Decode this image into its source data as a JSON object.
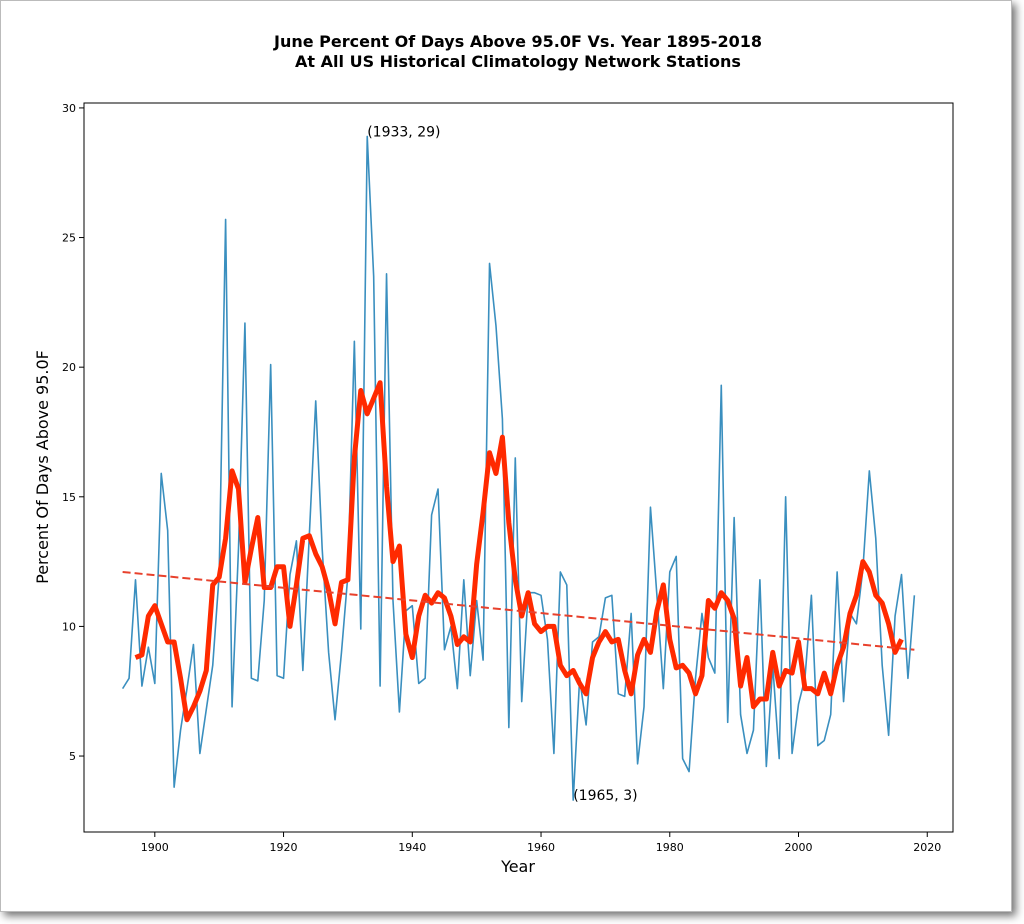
{
  "chart_data": {
    "type": "line",
    "title": [
      "June Percent Of Days Above 95.0F Vs. Year 1895-2018",
      "At All US Historical Climatology Network Stations"
    ],
    "xlabel": "Year",
    "ylabel": "Percent Of Days Above 95.0F",
    "x": [
      1895,
      1896,
      1897,
      1898,
      1899,
      1900,
      1901,
      1902,
      1903,
      1904,
      1905,
      1906,
      1907,
      1908,
      1909,
      1910,
      1911,
      1912,
      1913,
      1914,
      1915,
      1916,
      1917,
      1918,
      1919,
      1920,
      1921,
      1922,
      1923,
      1924,
      1925,
      1926,
      1927,
      1928,
      1929,
      1930,
      1931,
      1932,
      1933,
      1934,
      1935,
      1936,
      1937,
      1938,
      1939,
      1940,
      1941,
      1942,
      1943,
      1944,
      1945,
      1946,
      1947,
      1948,
      1949,
      1950,
      1951,
      1952,
      1953,
      1954,
      1955,
      1956,
      1957,
      1958,
      1959,
      1960,
      1961,
      1962,
      1963,
      1964,
      1965,
      1966,
      1967,
      1968,
      1969,
      1970,
      1971,
      1972,
      1973,
      1974,
      1975,
      1976,
      1977,
      1978,
      1979,
      1980,
      1981,
      1982,
      1983,
      1984,
      1985,
      1986,
      1987,
      1988,
      1989,
      1990,
      1991,
      1992,
      1993,
      1994,
      1995,
      1996,
      1997,
      1998,
      1999,
      2000,
      2001,
      2002,
      2003,
      2004,
      2005,
      2006,
      2007,
      2008,
      2009,
      2010,
      2011,
      2012,
      2013,
      2014,
      2015,
      2016,
      2017,
      2018
    ],
    "series": [
      {
        "color": "#3a8fbf",
        "width": 1.6,
        "values": [
          7.6,
          8.0,
          11.8,
          7.7,
          9.2,
          7.8,
          15.9,
          13.7,
          3.8,
          6.0,
          7.6,
          9.3,
          5.1,
          6.8,
          8.5,
          12.0,
          25.7,
          6.9,
          13.0,
          21.7,
          8.0,
          7.9,
          11.0,
          20.1,
          8.1,
          8.0,
          12.0,
          13.3,
          8.3,
          13.5,
          18.7,
          13.0,
          9.0,
          6.4,
          9.0,
          12.0,
          21.0,
          9.9,
          28.9,
          23.5,
          7.7,
          23.6,
          11.0,
          6.7,
          10.6,
          10.8,
          7.8,
          8.0,
          14.3,
          15.3,
          9.1,
          10.0,
          7.6,
          11.8,
          8.1,
          11.0,
          8.7,
          24.0,
          21.6,
          18.0,
          6.1,
          16.5,
          7.1,
          11.3,
          11.3,
          11.2,
          9.5,
          5.1,
          12.1,
          11.6,
          3.3,
          8.0,
          6.2,
          9.4,
          9.6,
          11.1,
          11.2,
          7.4,
          7.3,
          10.5,
          4.7,
          6.9,
          14.6,
          11.2,
          7.6,
          12.1,
          12.7,
          4.9,
          4.4,
          8.0,
          10.5,
          8.8,
          8.2,
          19.3,
          6.3,
          14.2,
          6.6,
          5.1,
          6.0,
          11.8,
          4.6,
          8.5,
          4.9,
          15.0,
          5.1,
          7.0,
          8.0,
          11.2,
          5.4,
          5.6,
          6.6,
          12.1,
          7.1,
          10.5,
          10.1,
          12.2,
          16.0,
          13.4,
          8.5,
          5.8,
          10.4,
          12.0,
          8.0,
          11.2
        ]
      },
      {
        "color": "#ff2a00",
        "width": 5,
        "values": [
          null,
          null,
          8.8,
          8.9,
          10.4,
          10.8,
          10.1,
          9.4,
          9.4,
          8.0,
          6.4,
          6.9,
          7.5,
          8.3,
          11.6,
          11.9,
          13.4,
          16.0,
          15.3,
          11.7,
          13.0,
          14.2,
          11.5,
          11.5,
          12.3,
          12.3,
          10.0,
          11.6,
          13.4,
          13.5,
          12.8,
          12.3,
          11.4,
          10.1,
          11.7,
          11.8,
          16.5,
          19.1,
          18.2,
          18.8,
          19.4,
          15.4,
          12.5,
          13.1,
          9.7,
          8.8,
          10.4,
          11.2,
          10.9,
          11.3,
          11.1,
          10.4,
          9.3,
          9.6,
          9.4,
          12.4,
          14.4,
          16.7,
          15.9,
          17.3,
          14.0,
          11.8,
          10.4,
          11.3,
          10.1,
          9.8,
          10.0,
          10.0,
          8.5,
          8.1,
          8.3,
          7.8,
          7.4,
          8.8,
          9.4,
          9.8,
          9.4,
          9.5,
          8.3,
          7.4,
          8.9,
          9.5,
          9.0,
          10.6,
          11.6,
          9.5,
          8.4,
          8.5,
          8.2,
          7.4,
          8.1,
          11.0,
          10.7,
          11.3,
          11.0,
          10.3,
          7.7,
          8.8,
          6.9,
          7.2,
          7.2,
          9.0,
          7.7,
          8.3,
          8.2,
          9.4,
          7.6,
          7.6,
          7.4,
          8.2,
          7.4,
          8.5,
          9.2,
          10.5,
          11.2,
          12.5,
          12.1,
          11.2,
          10.9,
          10.1,
          9.0,
          9.5,
          null,
          null
        ]
      },
      {
        "color": "#e8412c",
        "width": 2,
        "dashed": true,
        "x": [
          1895,
          2018
        ],
        "values": [
          12.1,
          9.1
        ]
      }
    ],
    "annotations": [
      {
        "text": "(1933, 29)",
        "x": 1933,
        "y": 28.9
      },
      {
        "text": "(1965, 3)",
        "x": 1965,
        "y": 3.3
      }
    ],
    "xlim": [
      1889,
      2024
    ],
    "ylim": [
      2.07,
      30.19
    ],
    "xticks": [
      1900,
      1920,
      1940,
      1960,
      1980,
      2000,
      2020
    ],
    "yticks": [
      5,
      10,
      15,
      20,
      25,
      30
    ]
  }
}
